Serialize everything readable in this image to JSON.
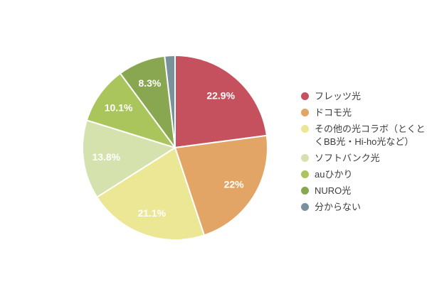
{
  "chart_data": {
    "type": "pie",
    "title": "",
    "legend_position": "right",
    "start_angle_deg": 0,
    "direction": "clockwise",
    "slice_label_color": "#ffffff",
    "legend_text_color": "#3c3c3c",
    "slices": [
      {
        "label": "フレッツ光",
        "value": 22.9,
        "display": "22.9%",
        "color": "#c5515f"
      },
      {
        "label": "ドコモ光",
        "value": 22,
        "display": "22%",
        "color": "#e3a566"
      },
      {
        "label": "その他の光コラボ（とくとくBB光・Hi-ho光など）",
        "value": 21.1,
        "display": "21.1%",
        "color": "#ece795"
      },
      {
        "label": "ソフトバンク光",
        "value": 13.8,
        "display": "13.8%",
        "color": "#d5e2ae"
      },
      {
        "label": "auひかり",
        "value": 10.1,
        "display": "10.1%",
        "color": "#a9c55c"
      },
      {
        "label": "NURO光",
        "value": 8.3,
        "display": "8.3%",
        "color": "#88a750"
      },
      {
        "label": "分からない",
        "value": 1.8,
        "display": "",
        "color": "#78919b"
      }
    ]
  }
}
